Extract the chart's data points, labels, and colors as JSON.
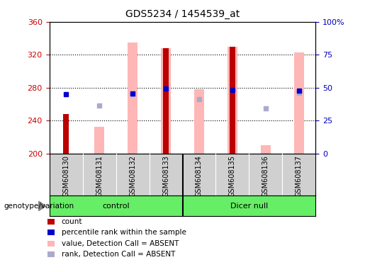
{
  "title": "GDS5234 / 1454539_at",
  "samples": [
    "GSM608130",
    "GSM608131",
    "GSM608132",
    "GSM608133",
    "GSM608134",
    "GSM608135",
    "GSM608136",
    "GSM608137"
  ],
  "ylim_left": [
    200,
    360
  ],
  "ylim_right": [
    0,
    100
  ],
  "yticks_left": [
    200,
    240,
    280,
    320,
    360
  ],
  "yticks_right": [
    0,
    25,
    50,
    75,
    100
  ],
  "yticklabels_right": [
    "0",
    "25",
    "50",
    "75",
    "100%"
  ],
  "gridlines": [
    240,
    280,
    320
  ],
  "red_count_bars": [
    248,
    null,
    null,
    328,
    null,
    330,
    null,
    null
  ],
  "pink_value_bars": [
    null,
    233,
    335,
    328,
    278,
    330,
    210,
    323
  ],
  "blue_rank_dots": [
    272,
    null,
    273,
    279,
    null,
    277,
    null,
    276
  ],
  "lightblue_rank_dots": [
    null,
    258,
    272,
    null,
    266,
    null,
    255,
    274
  ],
  "red_bar_width": 0.15,
  "pink_bar_width": 0.28,
  "red_color": "#bb0000",
  "pink_color": "#ffb6b6",
  "blue_color": "#0000cc",
  "lightblue_color": "#aaaacc",
  "plot_bg_color": "#ffffff",
  "sample_bg_color": "#d0d0d0",
  "group_bg_color": "#66ee66",
  "legend_items": [
    "count",
    "percentile rank within the sample",
    "value, Detection Call = ABSENT",
    "rank, Detection Call = ABSENT"
  ],
  "legend_colors": [
    "#bb0000",
    "#0000cc",
    "#ffb6b6",
    "#aaaacc"
  ],
  "left_tick_color": "#cc0000",
  "right_tick_color": "#0000bb",
  "control_label": "control",
  "dicernull_label": "Dicer null",
  "geno_label": "genotype/variation",
  "fig_width": 5.15,
  "fig_height": 3.84
}
